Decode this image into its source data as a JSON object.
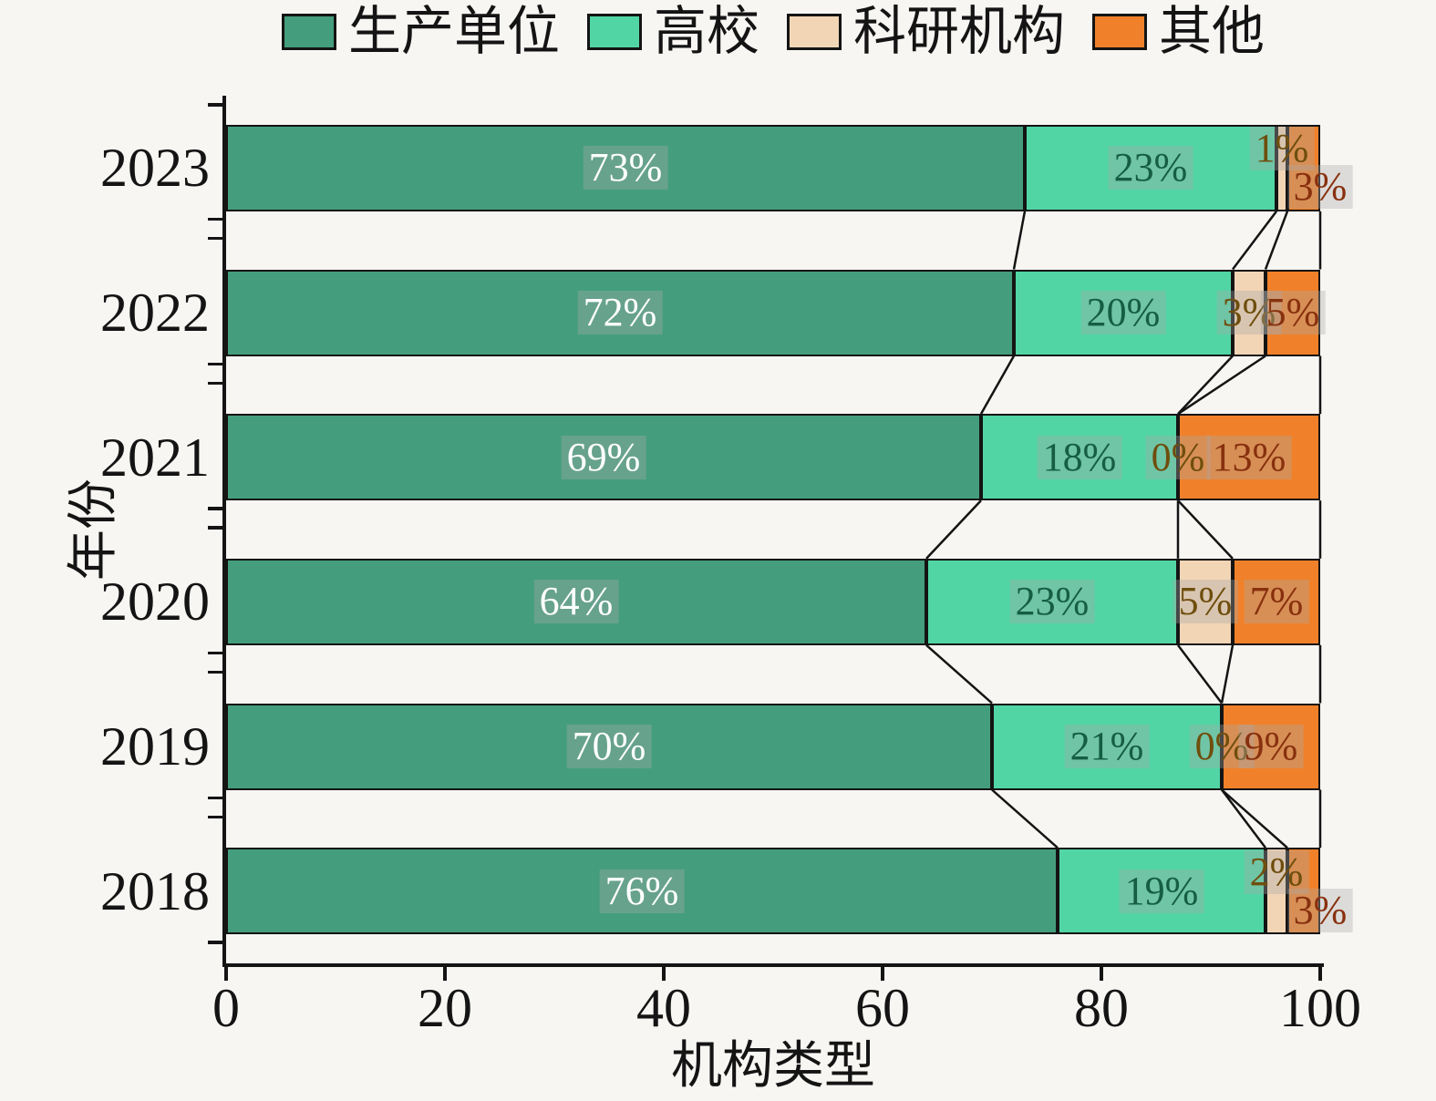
{
  "figure": {
    "background": "#f7f6f3",
    "ink_color": "#141414"
  },
  "axes": {
    "x_ticks": [
      0,
      20,
      40,
      60,
      80,
      100
    ],
    "x_tick_labels": [
      "0",
      "20",
      "40",
      "60",
      "80",
      "100"
    ]
  },
  "chart_data": {
    "type": "bar",
    "orientation": "horizontal",
    "stacked": true,
    "title": "",
    "xlabel": "机构类型",
    "ylabel": "年份",
    "xlim": [
      0,
      100
    ],
    "grid": false,
    "legend_position": "top",
    "value_suffix": "%",
    "categories": [
      "2023",
      "2022",
      "2021",
      "2020",
      "2019",
      "2018"
    ],
    "series": [
      {
        "name": "生产单位",
        "color": "#449e7e",
        "label_color": "#ffffff",
        "values": [
          73,
          72,
          69,
          64,
          70,
          76
        ]
      },
      {
        "name": "高校",
        "color": "#52d5a5",
        "label_color": "#155e43",
        "values": [
          23,
          20,
          18,
          23,
          21,
          19
        ]
      },
      {
        "name": "科研机构",
        "color": "#f2d5b5",
        "label_color": "#6f4e0d",
        "values": [
          1,
          3,
          0,
          5,
          0,
          2
        ]
      },
      {
        "name": "其他",
        "color": "#f0812a",
        "label_color": "#88300e",
        "values": [
          3,
          5,
          13,
          7,
          9,
          3
        ]
      }
    ]
  }
}
